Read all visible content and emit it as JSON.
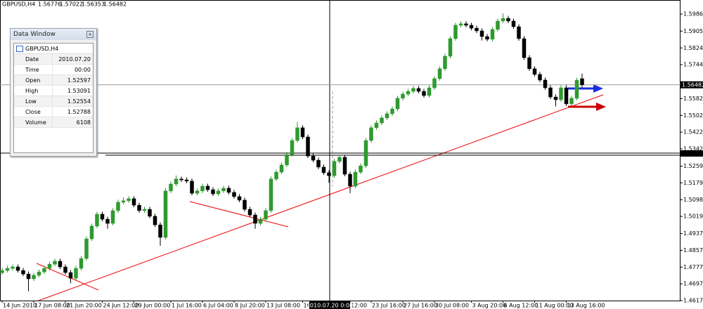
{
  "header": {
    "symbol": "GBPUSD,H4",
    "open": 1.56776,
    "high": 1.57022,
    "low": 1.56353,
    "close": 1.56482
  },
  "data_window": {
    "title": "Data Window",
    "symbol": "GBPUSD,H4",
    "rows": [
      [
        "Date",
        "2010.07.20"
      ],
      [
        "Time",
        "00:00"
      ],
      [
        "Open",
        "1.52597"
      ],
      [
        "High",
        "1.53091"
      ],
      [
        "Low",
        "1.52554"
      ],
      [
        "Close",
        "1.52788"
      ],
      [
        "Volume",
        "6108"
      ]
    ]
  },
  "chart_data": {
    "type": "candlestick",
    "bull_color": "#2e9a2e",
    "bear_color": "#000000",
    "grid": false,
    "current_price": 1.56482,
    "crosshair_time": "2010.07.20 0:00",
    "ylim": [
      1.4617,
      1.60536
    ],
    "yticks": [
      1.59865,
      {
        "value": 1.5905,
        "label": "1.59050"
      },
      1.58245,
      1.57445,
      {
        "value": 1.5582,
        "label": "1.55820"
      },
      {
        "value": 1.5502,
        "label": "1.55020"
      },
      {
        "value": 1.5422,
        "label": "1.54220"
      },
      {
        "value": 1.5342,
        "label": "1.53420"
      },
      1.52595,
      1.51795,
      1.50985,
      1.50195,
      {
        "value": 1.4937,
        "label": "1.49370"
      },
      {
        "value": 1.4857,
        "label": "1.48570"
      },
      {
        "value": 1.4777,
        "label": "1.47770"
      },
      {
        "value": 1.4697,
        "label": "1.46970"
      },
      {
        "value": 1.4617,
        "label": "1.46170"
      }
    ],
    "categories": [
      "14 Jun 2010",
      null,
      null,
      null,
      null,
      null,
      "17 Jun 08:00",
      null,
      null,
      null,
      null,
      null,
      "21 Jun 20:00",
      null,
      null,
      null,
      null,
      null,
      null,
      "24 Jun 12:00",
      null,
      null,
      null,
      null,
      null,
      "29 Jun 00:00",
      null,
      null,
      null,
      null,
      null,
      null,
      "1 Jul 16:00",
      null,
      null,
      null,
      null,
      null,
      "6 Jul 04:00",
      null,
      null,
      null,
      null,
      null,
      "8 Jul 20:00",
      null,
      null,
      null,
      null,
      null,
      "13 Jul 08:00",
      null,
      null,
      null,
      null,
      null,
      null,
      "16",
      null,
      null,
      null,
      null,
      null,
      null,
      null,
      null,
      "12:00",
      null,
      null,
      null,
      "23 Jul 16:00",
      null,
      null,
      null,
      null,
      null,
      "27 Jul 16:00",
      null,
      null,
      null,
      null,
      null,
      "30 Jul 08:00",
      null,
      null,
      null,
      null,
      null,
      null,
      "3 Aug 20:00",
      null,
      null,
      null,
      null,
      null,
      "6 Aug 12:00",
      null,
      null,
      null,
      null,
      null,
      "11 Aug 00:00",
      null,
      null,
      null,
      null,
      null,
      "13 Aug 16:00",
      null,
      null,
      null
    ],
    "open": [
      1.475,
      1.4761,
      1.4771,
      1.4778,
      1.4761,
      1.4744,
      1.4721,
      1.4738,
      1.4754,
      1.4771,
      1.4791,
      1.4805,
      1.4778,
      1.4751,
      1.4724,
      1.4771,
      1.4818,
      1.4912,
      1.4973,
      1.503,
      1.5006,
      1.4986,
      1.5047,
      1.5087,
      1.5094,
      1.5104,
      1.5073,
      1.5047,
      1.5053,
      1.502,
      1.4979,
      1.4919,
      1.5141,
      1.5174,
      1.5198,
      1.5194,
      1.5188,
      1.513,
      1.5141,
      1.5164,
      1.5147,
      1.5127,
      1.5141,
      1.5154,
      1.5134,
      1.5114,
      1.5097,
      1.5053,
      1.5026,
      1.4986,
      1.5006,
      1.5047,
      1.5198,
      1.5231,
      1.5265,
      1.5315,
      1.5382,
      1.5443,
      1.5399,
      1.5308,
      1.5288,
      1.5255,
      1.5228,
      1.5214,
      1.5282,
      1.5302,
      1.5221,
      1.5164,
      1.5231,
      1.5261,
      1.5382,
      1.5443,
      1.5466,
      1.549,
      1.551,
      1.5533,
      1.5584,
      1.5604,
      1.5617,
      1.5631,
      1.5617,
      1.5597,
      1.5634,
      1.5678,
      1.5725,
      1.5785,
      1.5869,
      1.5933,
      1.594,
      1.5933,
      1.5919,
      1.5906,
      1.5879,
      1.5866,
      1.5913,
      1.5953,
      1.5966,
      1.5953,
      1.5926,
      1.5869,
      1.5778,
      1.5725,
      1.5698,
      1.5671,
      1.5634,
      1.559,
      1.5577,
      1.5634,
      1.5557,
      1.5584,
      1.56776
    ],
    "high": [
      1.4773,
      1.4783,
      1.479,
      1.479,
      1.4773,
      1.4756,
      1.475,
      1.4766,
      1.4783,
      1.4803,
      1.4817,
      1.4817,
      1.479,
      1.4763,
      1.4783,
      1.483,
      1.4924,
      1.4985,
      1.5042,
      1.5042,
      1.5018,
      1.5059,
      1.5099,
      1.511,
      1.5116,
      1.5116,
      1.5085,
      1.5065,
      1.5065,
      1.5032,
      1.4991,
      1.5153,
      1.5186,
      1.5215,
      1.521,
      1.5206,
      1.52,
      1.5153,
      1.5176,
      1.5176,
      1.5159,
      1.5153,
      1.5166,
      1.5166,
      1.5146,
      1.5126,
      1.5109,
      1.5065,
      1.5038,
      1.5018,
      1.5059,
      1.521,
      1.5243,
      1.5277,
      1.5327,
      1.5394,
      1.547,
      1.5455,
      1.5411,
      1.532,
      1.53,
      1.5267,
      1.524,
      1.5294,
      1.5314,
      1.5314,
      1.5233,
      1.5243,
      1.5273,
      1.5394,
      1.5455,
      1.5478,
      1.5502,
      1.5522,
      1.5545,
      1.5596,
      1.5616,
      1.5629,
      1.5643,
      1.5643,
      1.5629,
      1.5646,
      1.569,
      1.5737,
      1.5797,
      1.5881,
      1.5945,
      1.5952,
      1.5952,
      1.5945,
      1.5931,
      1.5918,
      1.5891,
      1.5925,
      1.5965,
      1.599,
      1.5978,
      1.5965,
      1.5938,
      1.5881,
      1.579,
      1.5737,
      1.571,
      1.5683,
      1.5646,
      1.5602,
      1.5646,
      1.5646,
      1.5596,
      1.5682,
      1.57022
    ],
    "low": [
      1.474,
      1.4751,
      1.4761,
      1.4751,
      1.4734,
      1.4661,
      1.4711,
      1.4728,
      1.4744,
      1.4761,
      1.4781,
      1.4768,
      1.4741,
      1.47,
      1.4714,
      1.4761,
      1.4808,
      1.4902,
      1.4963,
      1.4996,
      1.496,
      1.4976,
      1.5037,
      1.5077,
      1.5084,
      1.5063,
      1.5037,
      1.5037,
      1.501,
      1.4969,
      1.4879,
      1.4909,
      1.5131,
      1.5164,
      1.5184,
      1.5178,
      1.512,
      1.512,
      1.5131,
      1.5137,
      1.5117,
      1.5117,
      1.5131,
      1.5124,
      1.5104,
      1.5087,
      1.5043,
      1.5016,
      1.496,
      1.4976,
      1.4996,
      1.5037,
      1.5188,
      1.5221,
      1.5255,
      1.5305,
      1.5372,
      1.5389,
      1.5298,
      1.5278,
      1.5245,
      1.5218,
      1.518,
      1.5204,
      1.5272,
      1.5211,
      1.513,
      1.5154,
      1.5221,
      1.5251,
      1.5372,
      1.5433,
      1.5456,
      1.548,
      1.55,
      1.5523,
      1.5574,
      1.5594,
      1.5607,
      1.5607,
      1.5587,
      1.5587,
      1.5624,
      1.5668,
      1.5715,
      1.5775,
      1.5859,
      1.5923,
      1.5923,
      1.5909,
      1.5896,
      1.586,
      1.5856,
      1.5856,
      1.5903,
      1.5943,
      1.5943,
      1.5916,
      1.5859,
      1.5768,
      1.5715,
      1.5688,
      1.5661,
      1.5624,
      1.558,
      1.5545,
      1.5567,
      1.5547,
      1.5547,
      1.5574,
      1.56353
    ],
    "close": [
      1.4761,
      1.4771,
      1.4778,
      1.4761,
      1.4744,
      1.4721,
      1.4738,
      1.4754,
      1.4771,
      1.4791,
      1.4805,
      1.4778,
      1.4751,
      1.4724,
      1.4771,
      1.4818,
      1.4912,
      1.4973,
      1.503,
      1.5006,
      1.4986,
      1.5047,
      1.5087,
      1.5094,
      1.5104,
      1.5073,
      1.5047,
      1.5053,
      1.502,
      1.4979,
      1.4919,
      1.5141,
      1.5174,
      1.5198,
      1.5194,
      1.5188,
      1.513,
      1.5141,
      1.5164,
      1.5147,
      1.5127,
      1.5141,
      1.5154,
      1.5134,
      1.5114,
      1.5097,
      1.5053,
      1.5026,
      1.4986,
      1.5006,
      1.5047,
      1.5198,
      1.5231,
      1.5265,
      1.5315,
      1.5382,
      1.5443,
      1.5399,
      1.5308,
      1.5288,
      1.5255,
      1.5228,
      1.5214,
      1.5282,
      1.5302,
      1.5221,
      1.5164,
      1.5231,
      1.5261,
      1.5382,
      1.5443,
      1.5466,
      1.549,
      1.551,
      1.5533,
      1.5584,
      1.5604,
      1.5617,
      1.5631,
      1.5617,
      1.5597,
      1.5634,
      1.5678,
      1.5725,
      1.5785,
      1.5869,
      1.5933,
      1.594,
      1.5933,
      1.5919,
      1.5906,
      1.5879,
      1.5866,
      1.5913,
      1.5953,
      1.5966,
      1.5953,
      1.5926,
      1.5869,
      1.5778,
      1.5725,
      1.5698,
      1.5671,
      1.5634,
      1.559,
      1.5577,
      1.5634,
      1.5557,
      1.5584,
      1.567,
      1.56482
    ]
  }
}
